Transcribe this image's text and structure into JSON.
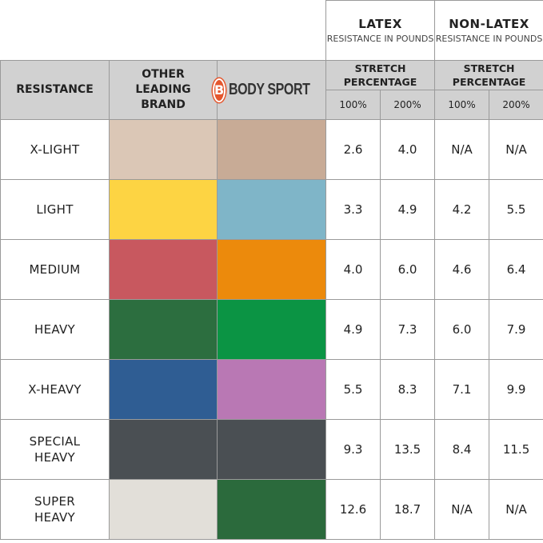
{
  "header": {
    "resistance": "RESISTANCE",
    "other_brand": "OTHER LEADING BRAND",
    "bodysport_logo": "BODY SPORT",
    "latex": {
      "title": "LATEX",
      "subtitle": "RESISTANCE IN POUNDS",
      "stretch": "STRETCH PERCENTAGE",
      "p100": "100%",
      "p200": "200%"
    },
    "nonlatex": {
      "title": "NON-LATEX",
      "subtitle": "RESISTANCE IN POUNDS",
      "stretch": "STRETCH PERCENTAGE",
      "p100": "100%",
      "p200": "200%"
    }
  },
  "rows": [
    {
      "label": "X-LIGHT",
      "other_color": "#dbc7b6",
      "bodysport_color": "#c8ab96",
      "latex100": "2.6",
      "latex200": "4.0",
      "non100": "N/A",
      "non200": "N/A"
    },
    {
      "label": "LIGHT",
      "other_color": "#fdd443",
      "bodysport_color": "#7fb5c8",
      "latex100": "3.3",
      "latex200": "4.9",
      "non100": "4.2",
      "non200": "5.5"
    },
    {
      "label": "MEDIUM",
      "other_color": "#c8585f",
      "bodysport_color": "#ec8a0c",
      "latex100": "4.0",
      "latex200": "6.0",
      "non100": "4.6",
      "non200": "6.4"
    },
    {
      "label": "HEAVY",
      "other_color": "#2c6e3f",
      "bodysport_color": "#0b9444",
      "latex100": "4.9",
      "latex200": "7.3",
      "non100": "6.0",
      "non200": "7.9"
    },
    {
      "label": "X-HEAVY",
      "other_color": "#2f5d93",
      "bodysport_color": "#b978b4",
      "latex100": "5.5",
      "latex200": "8.3",
      "non100": "7.1",
      "non200": "9.9"
    },
    {
      "label": "SPECIAL HEAVY",
      "other_color": "#4a4f53",
      "bodysport_color": "#4a4f53",
      "latex100": "9.3",
      "latex200": "13.5",
      "non100": "8.4",
      "non200": "11.5"
    },
    {
      "label": "SUPER HEAVY",
      "other_color": "#e2dfd9",
      "bodysport_color": "#2b6a3c",
      "latex100": "12.6",
      "latex200": "18.7",
      "non100": "N/A",
      "non200": "N/A"
    }
  ]
}
